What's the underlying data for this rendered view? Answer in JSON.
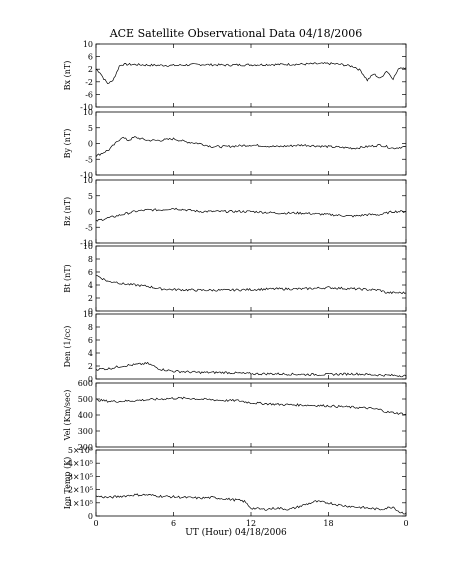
{
  "title": "ACE Satellite Observational Data   04/18/2006",
  "xlabel": "UT (Hour)   04/18/2006",
  "xticks": [
    "0",
    "6",
    "12",
    "18",
    "0"
  ],
  "chart_data": [
    {
      "type": "line",
      "ylabel": "Bx (nT)",
      "ylim": [
        -10,
        10
      ],
      "yticks": [
        "10",
        "6",
        "2",
        "-2",
        "-6",
        "-10"
      ],
      "x": [
        0,
        0.3,
        0.6,
        0.9,
        1.2,
        1.5,
        1.8,
        2,
        3,
        4,
        6,
        8,
        10,
        12,
        14,
        16,
        18,
        19,
        20,
        20.5,
        21,
        21.5,
        22,
        22.5,
        23,
        23.5,
        24
      ],
      "values": [
        2,
        1,
        -1,
        -2.5,
        -2,
        0,
        3,
        3.5,
        3.5,
        3.3,
        3.2,
        3.5,
        3.3,
        3.4,
        3.5,
        3.6,
        3.8,
        3.5,
        2.8,
        1.5,
        -1.5,
        0.5,
        -1,
        1.5,
        -1,
        2.5,
        2.5
      ]
    },
    {
      "type": "line",
      "ylabel": "By (nT)",
      "ylim": [
        -10,
        10
      ],
      "yticks": [
        "10",
        "5",
        "0",
        "-5",
        "-10"
      ],
      "x": [
        0,
        0.5,
        1,
        1.5,
        2,
        2.5,
        3,
        4,
        5,
        6,
        7,
        8,
        9,
        10,
        12,
        14,
        16,
        18,
        20,
        21,
        22,
        23,
        24
      ],
      "values": [
        -4,
        -3,
        -2,
        0,
        2,
        1,
        2,
        1,
        1,
        1.5,
        0.5,
        0,
        -1,
        -1,
        -0.5,
        -1,
        -0.5,
        -1,
        -1.5,
        -1,
        -0.5,
        -1.5,
        -1
      ]
    },
    {
      "type": "line",
      "ylabel": "Bz (nT)",
      "ylim": [
        -10,
        10
      ],
      "yticks": [
        "10",
        "5",
        "0",
        "-5",
        "-10"
      ],
      "x": [
        0,
        1,
        2,
        3,
        4,
        5,
        6,
        7,
        8,
        10,
        12,
        14,
        16,
        18,
        20,
        21,
        22,
        23,
        24
      ],
      "values": [
        -3,
        -2,
        -1,
        0,
        0.5,
        0.5,
        1,
        0.5,
        0,
        0,
        0,
        -0.5,
        -0.5,
        -1,
        -1.5,
        -1,
        -1,
        0,
        0
      ]
    },
    {
      "type": "line",
      "ylabel": "Bt (nT)",
      "ylim": [
        0,
        10
      ],
      "yticks": [
        "10",
        "8",
        "6",
        "4",
        "2",
        "0"
      ],
      "x": [
        0,
        0.5,
        1,
        1.5,
        2,
        3,
        4,
        5,
        6,
        8,
        10,
        12,
        14,
        16,
        18,
        20,
        22,
        22.5,
        24
      ],
      "values": [
        5.5,
        5,
        4.5,
        4.5,
        4.2,
        4,
        3.8,
        3.4,
        3.3,
        3.2,
        3.2,
        3.3,
        3.4,
        3.4,
        3.6,
        3.4,
        3.2,
        2.8,
        2.8
      ]
    },
    {
      "type": "line",
      "ylabel": "Den (1/cc)",
      "ylim": [
        0,
        10
      ],
      "yticks": [
        "10",
        "8",
        "6",
        "4",
        "2",
        "0"
      ],
      "x": [
        0,
        1,
        2,
        3,
        4,
        5,
        6,
        8,
        10,
        12,
        14,
        16,
        18,
        20,
        22,
        24
      ],
      "values": [
        1.5,
        1.6,
        2,
        2.2,
        2.4,
        1.5,
        1.2,
        1,
        1,
        0.8,
        0.8,
        0.7,
        0.7,
        0.8,
        0.6,
        0.5
      ]
    },
    {
      "type": "line",
      "ylabel": "Vel (Km/sec)",
      "ylim": [
        200,
        620
      ],
      "yticks": [
        "600",
        "500",
        "400",
        "300",
        "200"
      ],
      "x": [
        0,
        1,
        2,
        3,
        4,
        5,
        6,
        7,
        8,
        9,
        10,
        11,
        12,
        13,
        14,
        16,
        18,
        20,
        21,
        22,
        22.5,
        23,
        23.5,
        24
      ],
      "values": [
        510,
        500,
        500,
        505,
        510,
        515,
        520,
        520,
        515,
        510,
        505,
        505,
        490,
        485,
        480,
        475,
        470,
        460,
        455,
        445,
        430,
        425,
        420,
        415
      ]
    },
    {
      "type": "line",
      "ylabel": "Ion Temp (K)",
      "ylim": [
        0,
        500000
      ],
      "yticks": [
        "5×10⁵",
        "4×10⁵",
        "3×10⁵",
        "2×10⁵",
        "1×10⁵",
        "0"
      ],
      "x": [
        0,
        1,
        2,
        3,
        4,
        5,
        6,
        7,
        8,
        9,
        10,
        11,
        11.5,
        12,
        13,
        14,
        15,
        16,
        17,
        18,
        19,
        20,
        21,
        22,
        23,
        23.5,
        24
      ],
      "values": [
        150000,
        140000,
        150000,
        160000,
        160000,
        150000,
        145000,
        140000,
        135000,
        140000,
        130000,
        120000,
        110000,
        60000,
        50000,
        60000,
        50000,
        80000,
        110000,
        100000,
        80000,
        70000,
        60000,
        50000,
        70000,
        30000,
        20000
      ]
    }
  ]
}
